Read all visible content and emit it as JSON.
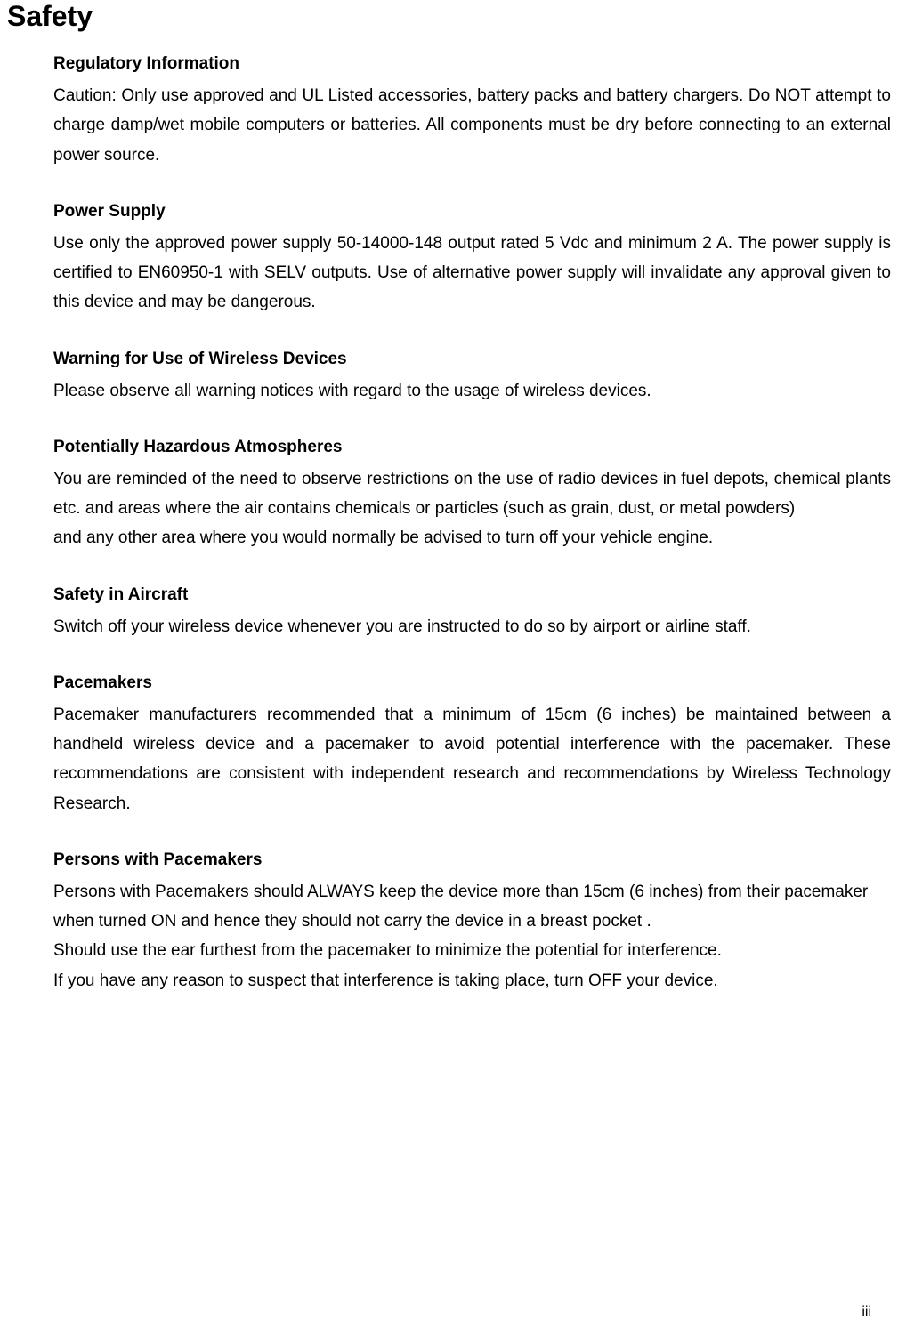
{
  "page_title": "Safety",
  "page_number": "iii",
  "sections": [
    {
      "heading": "Regulatory Information",
      "paragraphs": [
        "Caution: Only use approved and UL Listed accessories, battery packs and battery chargers. Do NOT attempt to charge damp/wet mobile computers or batteries. All components must be dry before connecting to an external power source."
      ],
      "justified": true
    },
    {
      "heading": "Power Supply",
      "paragraphs": [
        "Use only the approved power supply 50-14000-148 output rated 5 Vdc and minimum 2 A. The power supply is certified to EN60950-1 with SELV outputs. Use of alternative power supply will invalidate any approval given to this device and may be dangerous."
      ],
      "justified": true
    },
    {
      "heading": "Warning for Use of Wireless Devices",
      "paragraphs": [
        "Please observe all warning notices with regard to the usage of wireless devices."
      ],
      "justified": false
    },
    {
      "heading": "Potentially Hazardous Atmospheres",
      "paragraphs": [
        "You are reminded of the need to observe restrictions on the use of radio devices in fuel depots, chemical plants etc. and areas where the air contains chemicals or particles (such as grain, dust, or metal powders)",
        "and any other area where you would normally be advised to turn off your vehicle engine."
      ],
      "justified": true
    },
    {
      "heading": "Safety in Aircraft",
      "paragraphs": [
        "Switch off your wireless device whenever you are instructed to do so by airport or airline staff."
      ],
      "justified": true
    },
    {
      "heading": "Pacemakers",
      "paragraphs": [
        "Pacemaker manufacturers recommended that a minimum of 15cm (6 inches) be maintained between a handheld wireless device and a pacemaker to avoid potential interference with the pacemaker. These recommendations are consistent with independent research and recommendations by Wireless Technology Research."
      ],
      "justified": true
    },
    {
      "heading": "Persons with Pacemakers",
      "paragraphs": [
        "Persons with Pacemakers should ALWAYS keep the device more than 15cm (6 inches) from their pacemaker when turned ON and hence they should not carry the device in a breast pocket .",
        "Should use the ear furthest from the pacemaker to minimize the potential for interference.",
        "If you have any reason to suspect that interference is taking place, turn OFF your device."
      ],
      "justified": false
    }
  ],
  "colors": {
    "background": "#ffffff",
    "text": "#000000"
  },
  "typography": {
    "title_fontsize": 32,
    "heading_fontsize": 19,
    "body_fontsize": 19,
    "line_height": 1.75,
    "font_family": "Arial"
  }
}
